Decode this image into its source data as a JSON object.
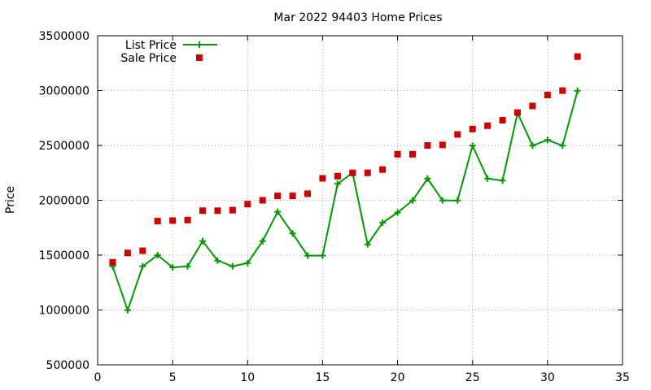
{
  "chart_data": {
    "type": "line",
    "title": "Mar 2022 94403 Home Prices",
    "xlabel": "",
    "ylabel": "Price",
    "xlim": [
      0,
      35
    ],
    "ylim": [
      500000,
      3500000
    ],
    "x_ticks": [
      "0",
      "5",
      "10",
      "15",
      "20",
      "25",
      "30",
      "35"
    ],
    "y_ticks": [
      "500000",
      "1000000",
      "1500000",
      "2000000",
      "2500000",
      "3000000",
      "3500000"
    ],
    "grid": true,
    "legend_position": "top-left",
    "series": [
      {
        "name": "List Price",
        "style": "line with plus markers",
        "color": "#009900",
        "x": [
          1,
          2,
          3,
          4,
          5,
          6,
          7,
          8,
          9,
          10,
          11,
          12,
          13,
          14,
          15,
          16,
          17,
          18,
          19,
          20,
          21,
          22,
          23,
          24,
          25,
          26,
          27,
          28,
          29,
          30,
          31,
          32
        ],
        "values": [
          1398000,
          998000,
          1398000,
          1500000,
          1388000,
          1398000,
          1628000,
          1450000,
          1398000,
          1428000,
          1628000,
          1895000,
          1698000,
          1495000,
          1495000,
          2150000,
          2250000,
          1598000,
          1795000,
          1888000,
          1998000,
          2198000,
          1998000,
          1998000,
          2498000,
          2198000,
          2180000,
          2795000,
          2498000,
          2550000,
          2498000,
          2998000
        ]
      },
      {
        "name": "Sale Price",
        "style": "square markers",
        "color": "#cc0000",
        "x": [
          1,
          2,
          3,
          4,
          5,
          6,
          7,
          8,
          9,
          10,
          11,
          12,
          13,
          14,
          15,
          16,
          17,
          18,
          19,
          20,
          21,
          22,
          23,
          24,
          25,
          26,
          27,
          28,
          29,
          30,
          31,
          32
        ],
        "values": [
          1435000,
          1520000,
          1540000,
          1810000,
          1815000,
          1820000,
          1905000,
          1905000,
          1910000,
          1965000,
          2000000,
          2040000,
          2040000,
          2060000,
          2200000,
          2220000,
          2250000,
          2250000,
          2280000,
          2420000,
          2420000,
          2500000,
          2505000,
          2600000,
          2650000,
          2680000,
          2730000,
          2800000,
          2860000,
          2960000,
          3000000,
          3310000
        ]
      }
    ]
  }
}
